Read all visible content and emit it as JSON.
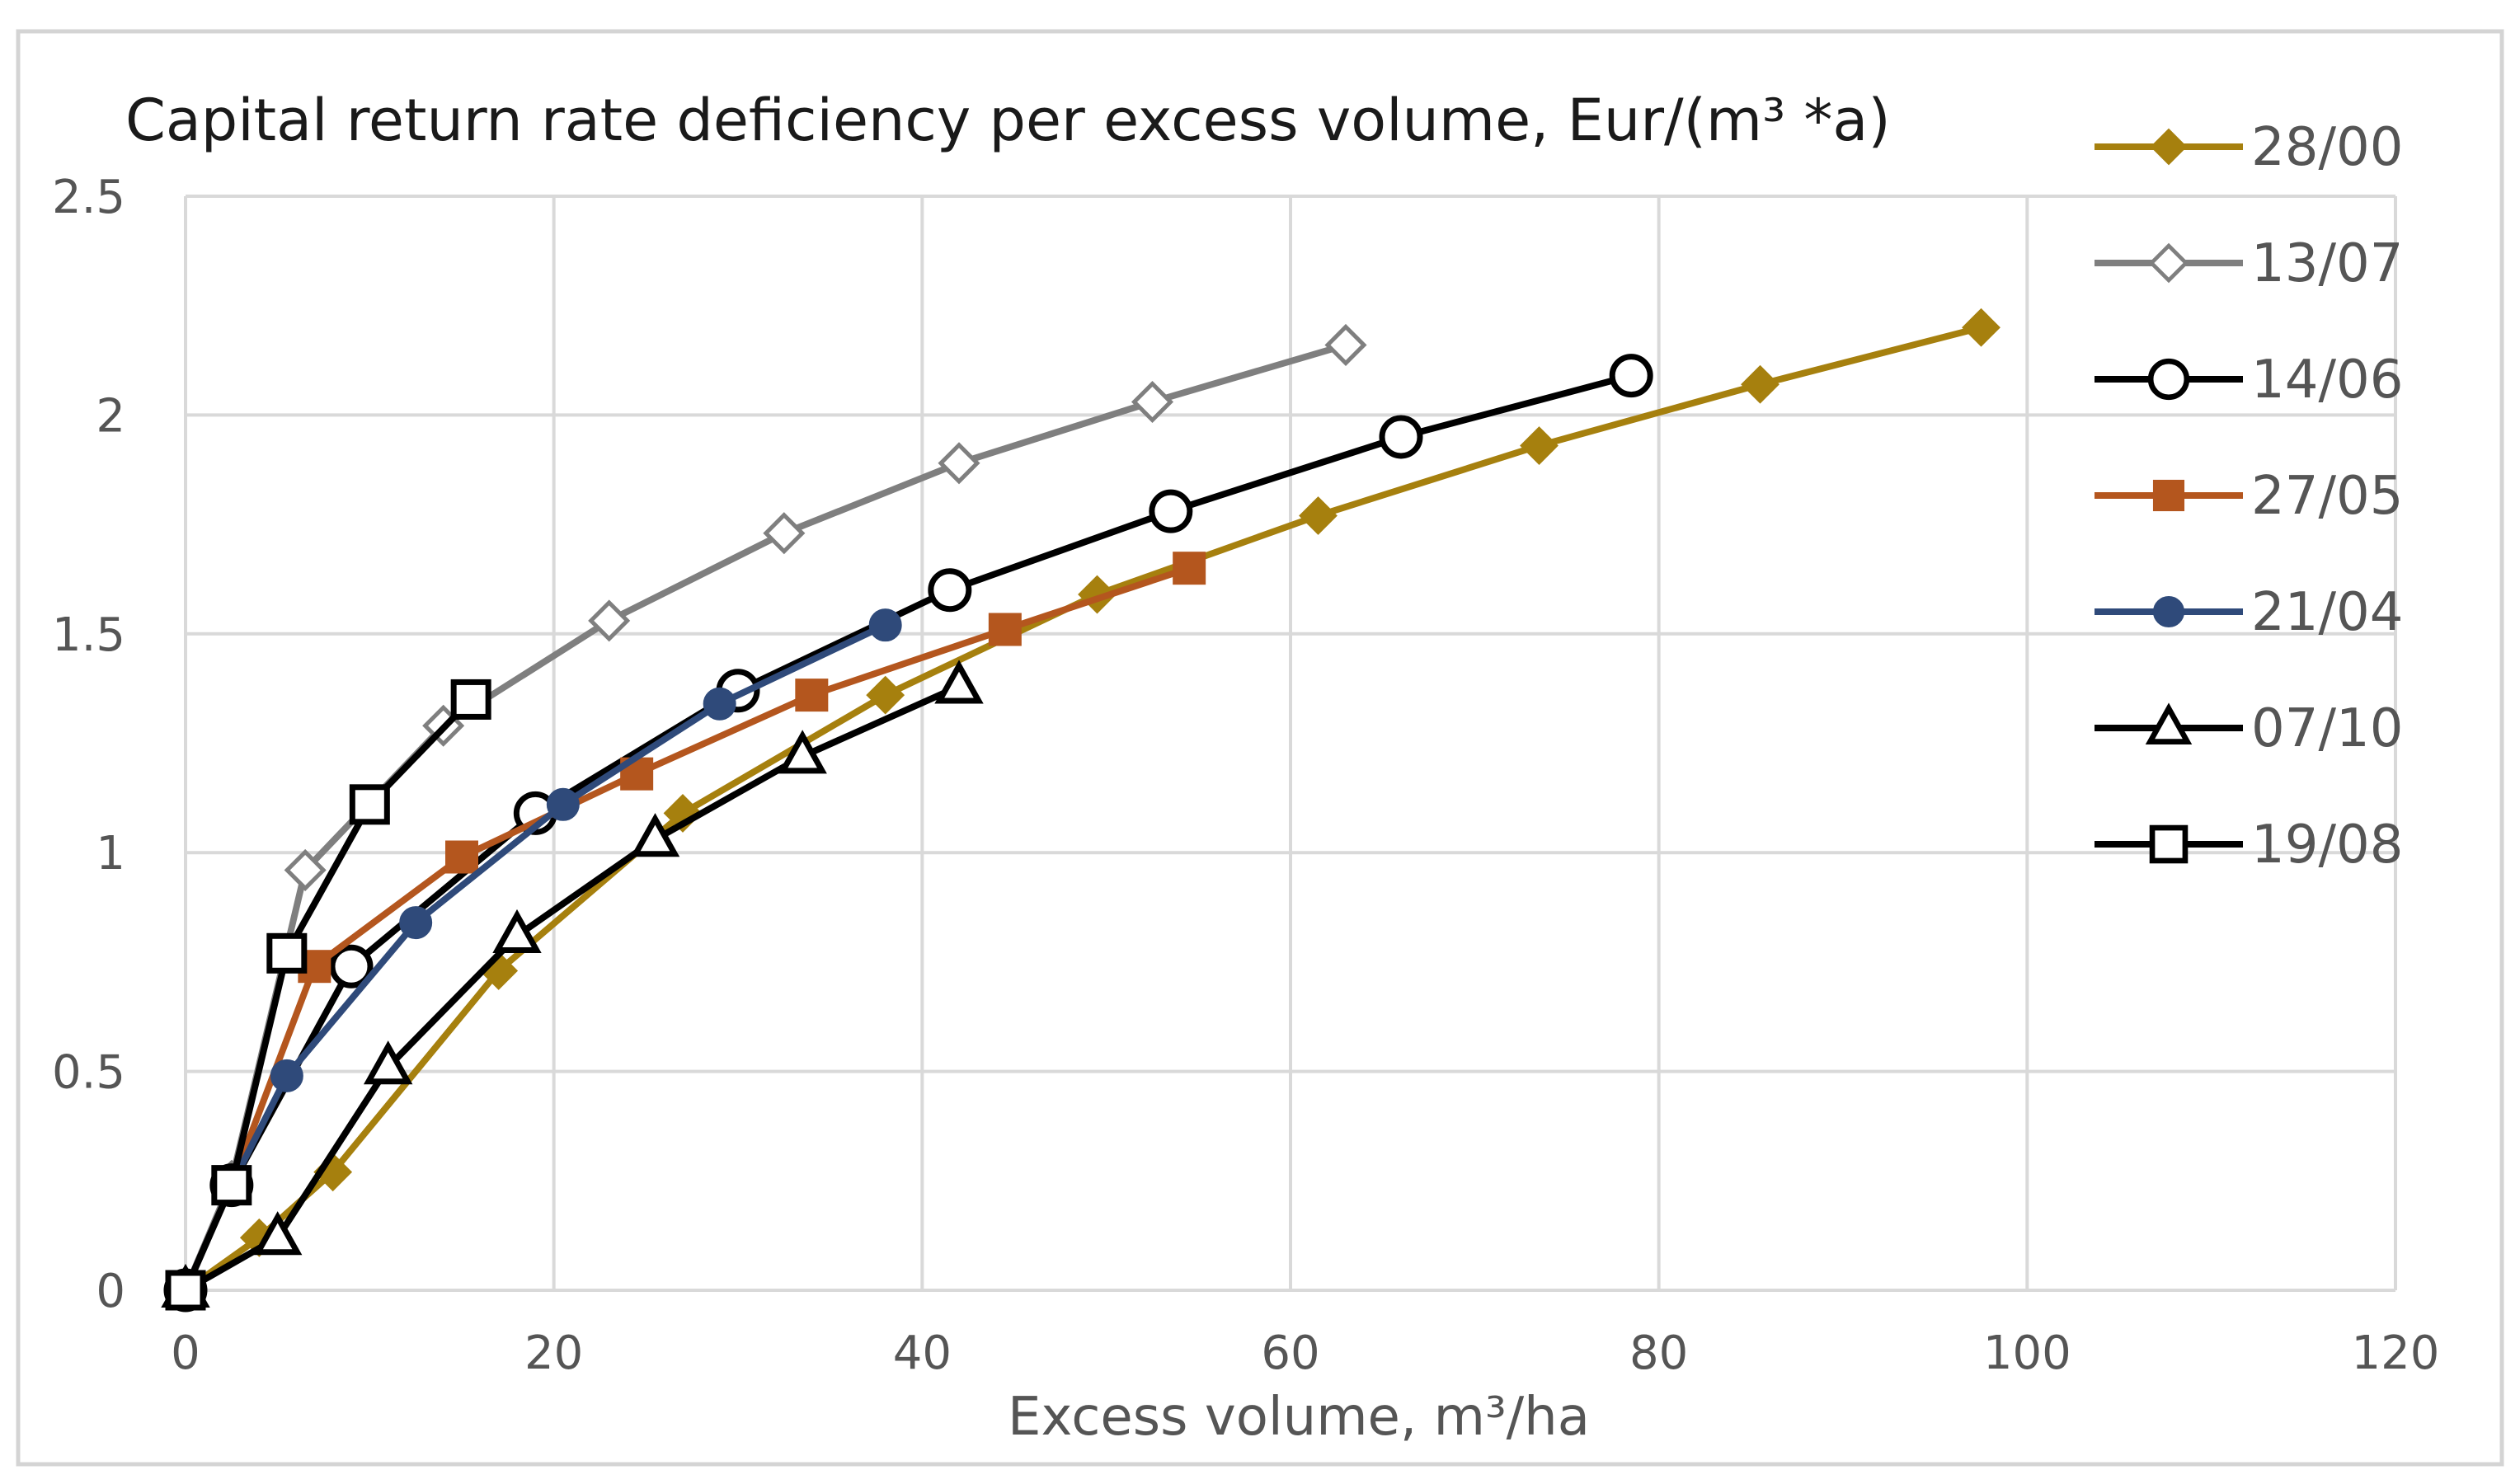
{
  "chart_data": {
    "type": "line",
    "title": "Capital return rate deficiency per excess volume,  Eur/(m³ *a)",
    "xlabel": "Excess volume, m³/ha",
    "ylabel": "",
    "xlim": [
      0,
      120
    ],
    "ylim": [
      0,
      2.5
    ],
    "x_ticks": [
      "0",
      "20",
      "40",
      "60",
      "80",
      "100",
      "120"
    ],
    "y_ticks": [
      "0",
      "0.5",
      "1",
      "1.5",
      "2",
      "2.5"
    ],
    "grid": true,
    "legend_position": "right",
    "series": [
      {
        "name": "28/00",
        "color": "#A6800E",
        "marker": "diamond",
        "filled": true,
        "points": [
          [
            0,
            0
          ],
          [
            4,
            0.12
          ],
          [
            8,
            0.27
          ],
          [
            17,
            0.73
          ],
          [
            27,
            1.09
          ],
          [
            38,
            1.36
          ],
          [
            49.5,
            1.59
          ],
          [
            61.5,
            1.77
          ],
          [
            73.5,
            1.93
          ],
          [
            85.5,
            2.07
          ],
          [
            97.5,
            2.2
          ]
        ]
      },
      {
        "name": "13/07",
        "color": "#7F7F7F",
        "marker": "diamond",
        "filled": false,
        "points": [
          [
            0,
            0
          ],
          [
            2.5,
            0.25
          ],
          [
            6.5,
            0.96
          ],
          [
            14,
            1.29
          ],
          [
            23,
            1.53
          ],
          [
            32.5,
            1.73
          ],
          [
            42,
            1.89
          ],
          [
            52.5,
            2.03
          ],
          [
            63,
            2.16
          ]
        ]
      },
      {
        "name": "14/06",
        "color": "#000000",
        "marker": "circle",
        "filled": false,
        "points": [
          [
            0,
            0
          ],
          [
            2.5,
            0.24
          ],
          [
            9,
            0.74
          ],
          [
            19,
            1.09
          ],
          [
            30,
            1.37
          ],
          [
            41.5,
            1.6
          ],
          [
            53.5,
            1.78
          ],
          [
            66,
            1.95
          ],
          [
            78.5,
            2.09
          ]
        ]
      },
      {
        "name": "27/05",
        "color": "#B4561E",
        "marker": "square",
        "filled": true,
        "points": [
          [
            0,
            0
          ],
          [
            2.5,
            0.24
          ],
          [
            7,
            0.74
          ],
          [
            15,
            0.99
          ],
          [
            24.5,
            1.18
          ],
          [
            34,
            1.36
          ],
          [
            44.5,
            1.51
          ],
          [
            54.5,
            1.65
          ]
        ]
      },
      {
        "name": "21/04",
        "color": "#2F4A7A",
        "marker": "circle",
        "filled": true,
        "points": [
          [
            0,
            0
          ],
          [
            2.5,
            0.24
          ],
          [
            5.5,
            0.49
          ],
          [
            12.5,
            0.84
          ],
          [
            20.5,
            1.11
          ],
          [
            29,
            1.34
          ],
          [
            38,
            1.52
          ]
        ]
      },
      {
        "name": "07/10",
        "color": "#000000",
        "marker": "triangle",
        "filled": false,
        "points": [
          [
            0,
            0
          ],
          [
            5,
            0.12
          ],
          [
            11,
            0.51
          ],
          [
            18,
            0.81
          ],
          [
            25.5,
            1.03
          ],
          [
            33.5,
            1.22
          ],
          [
            42,
            1.38
          ]
        ]
      },
      {
        "name": "19/08",
        "color": "#000000",
        "marker": "square",
        "filled": false,
        "points": [
          [
            0,
            0
          ],
          [
            2.5,
            0.24
          ],
          [
            5.5,
            0.77
          ],
          [
            10,
            1.11
          ],
          [
            15.5,
            1.35
          ]
        ]
      }
    ]
  }
}
